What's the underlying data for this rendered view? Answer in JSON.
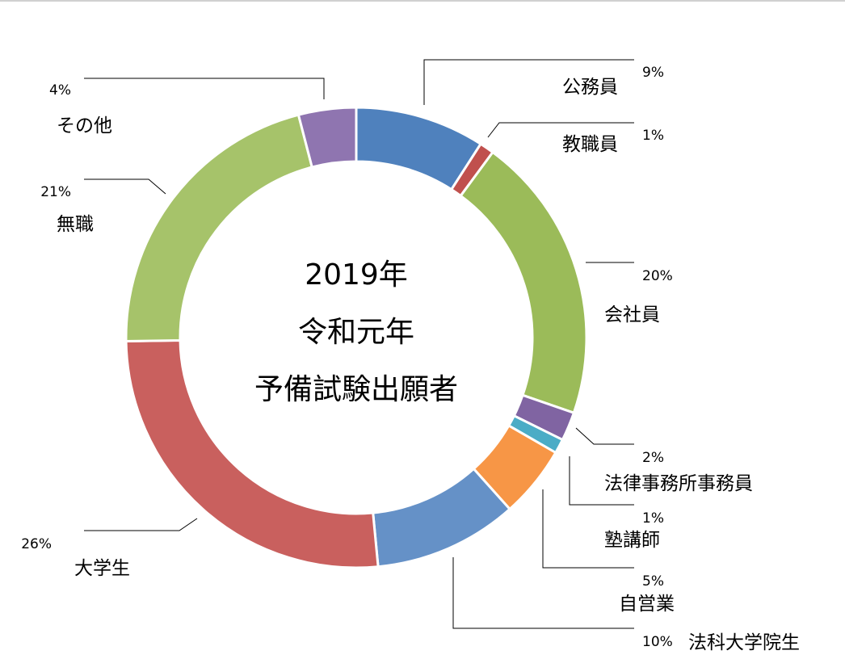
{
  "chart_data": {
    "type": "pie",
    "style": "donut",
    "title_lines": [
      "2019年",
      "令和元年",
      "予備試験出願者"
    ],
    "slices": [
      {
        "label": "公務員",
        "pct_label": "9%",
        "value": 9,
        "color": "#4f81bd"
      },
      {
        "label": "教職員",
        "pct_label": "1%",
        "value": 1,
        "color": "#c0504d"
      },
      {
        "label": "会社員",
        "pct_label": "20%",
        "value": 20,
        "color": "#9bbb59"
      },
      {
        "label": "法律事務所事務員",
        "pct_label": "2%",
        "value": 2,
        "color": "#8064a2"
      },
      {
        "label": "塾講師",
        "pct_label": "1%",
        "value": 1,
        "color": "#4bacc6"
      },
      {
        "label": "自営業",
        "pct_label": "5%",
        "value": 5,
        "color": "#f79646"
      },
      {
        "label": "法科大学院生",
        "pct_label": "10%",
        "value": 10,
        "color": "#6591c7"
      },
      {
        "label": "大学生",
        "pct_label": "26%",
        "value": 26,
        "color": "#c9605e"
      },
      {
        "label": "無職",
        "pct_label": "21%",
        "value": 21,
        "color": "#a6c36a"
      },
      {
        "label": "その他",
        "pct_label": "4%",
        "value": 4,
        "color": "#8f75b0"
      }
    ]
  }
}
